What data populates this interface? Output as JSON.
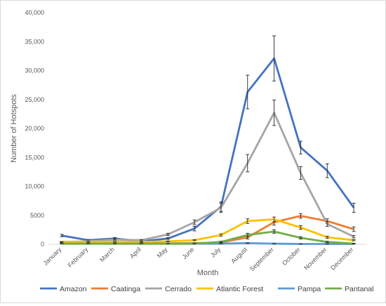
{
  "chart_data": {
    "type": "line",
    "xlabel": "Month",
    "ylabel": "Number of Hotspots",
    "ylim": [
      0,
      40000
    ],
    "yticks": [
      0,
      5000,
      10000,
      15000,
      20000,
      25000,
      30000,
      35000,
      40000
    ],
    "ytick_labels": [
      "0",
      "5000",
      "10,000",
      "15,000",
      "20,000",
      "25,000",
      "30,000",
      "35,000",
      "40,000"
    ],
    "categories": [
      "January",
      "February",
      "March",
      "April",
      "May",
      "June",
      "July",
      "August",
      "September",
      "October",
      "November",
      "December"
    ],
    "grid": false,
    "legend_position": "bottom",
    "series": [
      {
        "name": "Amazon",
        "color": "#4472C4",
        "values": [
          1500,
          700,
          1000,
          500,
          1000,
          2700,
          6500,
          26300,
          32100,
          16700,
          12700,
          6300
        ],
        "errors": [
          200,
          100,
          150,
          100,
          150,
          400,
          800,
          2900,
          3900,
          1100,
          1200,
          800
        ]
      },
      {
        "name": "Caatinga",
        "color": "#ED7D31",
        "values": [
          300,
          200,
          200,
          150,
          150,
          200,
          300,
          1200,
          3800,
          4900,
          4000,
          2600
        ],
        "errors": [
          50,
          50,
          50,
          30,
          30,
          50,
          100,
          300,
          500,
          400,
          400,
          400
        ]
      },
      {
        "name": "Cerrado",
        "color": "#A5A5A5",
        "values": [
          400,
          500,
          800,
          700,
          1700,
          3800,
          6300,
          14000,
          22700,
          12300,
          3500,
          1300
        ],
        "errors": [
          50,
          50,
          100,
          100,
          200,
          400,
          800,
          1500,
          2200,
          1100,
          400,
          200
        ]
      },
      {
        "name": "Atlantic Forest",
        "color": "#FFC000",
        "values": [
          400,
          400,
          400,
          400,
          500,
          700,
          1600,
          4000,
          4300,
          2900,
          1200,
          700
        ],
        "errors": [
          50,
          50,
          50,
          50,
          50,
          100,
          200,
          400,
          400,
          300,
          200,
          100
        ]
      },
      {
        "name": "Pampa",
        "color": "#5B9BD5",
        "values": [
          100,
          100,
          100,
          100,
          100,
          100,
          100,
          200,
          100,
          50,
          50,
          50
        ],
        "errors": [
          20,
          20,
          20,
          20,
          20,
          20,
          20,
          30,
          20,
          10,
          10,
          10
        ]
      },
      {
        "name": "Pantanal",
        "color": "#70AD47",
        "values": [
          100,
          100,
          100,
          100,
          100,
          100,
          400,
          1600,
          2200,
          1100,
          400,
          100
        ],
        "errors": [
          20,
          20,
          20,
          20,
          20,
          30,
          100,
          300,
          300,
          200,
          100,
          50
        ]
      }
    ]
  }
}
